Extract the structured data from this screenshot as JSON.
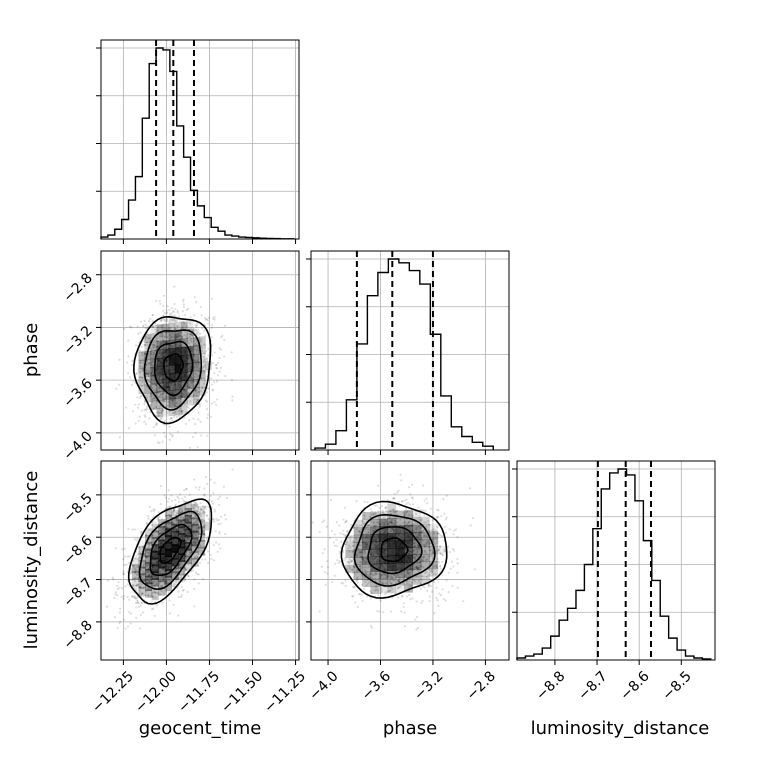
{
  "chart_data": {
    "type": "corner",
    "parameters": [
      "geocent_time",
      "phase",
      "luminosity_distance"
    ],
    "quantile_lines": {
      "geocent_time": [
        -12.06,
        -11.96,
        -11.84
      ],
      "phase": [
        -3.78,
        -3.51,
        -3.2
      ],
      "luminosity_distance": [
        -8.698,
        -8.632,
        -8.572
      ]
    },
    "grid": true,
    "axes": {
      "geocent_time": {
        "range": [
          -12.38,
          -11.23
        ],
        "ticks": [
          -12.25,
          -12.0,
          -11.75,
          -11.5,
          -11.25
        ],
        "tick_labels": [
          "−12.25",
          "−12.00",
          "−11.75",
          "−11.50",
          "−11.25"
        ]
      },
      "phase": {
        "range": [
          -4.13,
          -2.62
        ],
        "ticks": [
          -4.0,
          -3.6,
          -3.2,
          -2.8
        ],
        "tick_labels": [
          "−4.0",
          "−3.6",
          "−3.2",
          "−2.8"
        ]
      },
      "luminosity_distance": {
        "range": [
          -8.89,
          -8.42
        ],
        "ticks": [
          -8.8,
          -8.7,
          -8.6,
          -8.5
        ],
        "tick_labels": [
          "−8.8",
          "−8.7",
          "−8.6",
          "−8.5"
        ]
      }
    },
    "histograms": [
      {
        "parameter": "geocent_time",
        "bin_edges": [
          -12.38,
          -12.34,
          -12.3,
          -12.26,
          -12.22,
          -12.18,
          -12.14,
          -12.1,
          -12.06,
          -12.02,
          -11.98,
          -11.94,
          -11.9,
          -11.86,
          -11.82,
          -11.78,
          -11.74,
          -11.7,
          -11.66,
          -11.62,
          -11.58,
          -11.54,
          -11.5,
          -11.46,
          -11.42,
          -11.38,
          -11.34,
          -11.3,
          -11.26
        ],
        "counts": [
          0.01,
          0.02,
          0.05,
          0.1,
          0.2,
          0.32,
          0.62,
          0.9,
          0.98,
          0.97,
          0.86,
          0.58,
          0.42,
          0.25,
          0.17,
          0.11,
          0.06,
          0.04,
          0.02,
          0.015,
          0.01,
          0.008,
          0.006,
          0.004,
          0.003,
          0.002,
          0.001,
          0.001
        ]
      },
      {
        "parameter": "phase",
        "bin_edges": [
          -4.1,
          -4.02,
          -3.94,
          -3.86,
          -3.78,
          -3.7,
          -3.62,
          -3.54,
          -3.46,
          -3.38,
          -3.3,
          -3.22,
          -3.14,
          -3.06,
          -2.98,
          -2.9,
          -2.82,
          -2.74
        ],
        "counts": [
          0.01,
          0.03,
          0.1,
          0.26,
          0.55,
          0.8,
          0.92,
          0.99,
          0.97,
          0.93,
          0.86,
          0.6,
          0.28,
          0.12,
          0.07,
          0.04,
          0.02
        ]
      },
      {
        "parameter": "luminosity_distance",
        "bin_edges": [
          -8.89,
          -8.87,
          -8.85,
          -8.83,
          -8.81,
          -8.79,
          -8.77,
          -8.75,
          -8.73,
          -8.71,
          -8.69,
          -8.67,
          -8.65,
          -8.63,
          -8.61,
          -8.59,
          -8.57,
          -8.55,
          -8.53,
          -8.51,
          -8.49,
          -8.47,
          -8.45,
          -8.43
        ],
        "counts": [
          0.01,
          0.02,
          0.03,
          0.06,
          0.12,
          0.2,
          0.26,
          0.35,
          0.48,
          0.66,
          0.86,
          0.94,
          0.96,
          0.93,
          0.8,
          0.6,
          0.4,
          0.22,
          0.11,
          0.05,
          0.02,
          0.01,
          0.005
        ]
      }
    ],
    "joint_2d": [
      {
        "x": "geocent_time",
        "y": "phase",
        "mean": [
          -11.96,
          -3.5
        ],
        "std": [
          0.11,
          0.2
        ],
        "corr": 0.08
      },
      {
        "x": "geocent_time",
        "y": "luminosity_distance",
        "mean": [
          -11.98,
          -8.63
        ],
        "std": [
          0.12,
          0.06
        ],
        "corr": 0.55
      },
      {
        "x": "phase",
        "y": "luminosity_distance",
        "mean": [
          -3.5,
          -8.63
        ],
        "std": [
          0.2,
          0.055
        ],
        "corr": 0.05
      }
    ]
  }
}
